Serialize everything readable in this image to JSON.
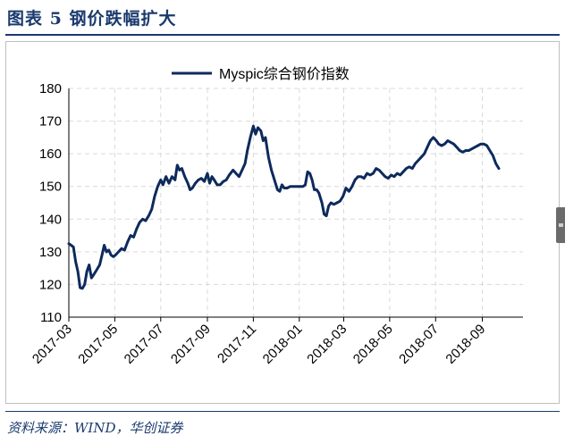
{
  "header": {
    "title": "图表 5 钢价跌幅扩大"
  },
  "footer": {
    "source": "资料来源：WIND，华创证券"
  },
  "colors": {
    "line": "#0d2a5c",
    "grid": "#d9d9d9",
    "title": "#1a3a6e"
  },
  "chart_data": {
    "type": "line",
    "title": "",
    "xlabel": "",
    "ylabel": "",
    "ylim": [
      110,
      180
    ],
    "yticks": [
      110,
      120,
      130,
      140,
      150,
      160,
      170,
      180
    ],
    "xlim": [
      "2017-03-01",
      "2018-10-25"
    ],
    "xticks": [
      "2017-03",
      "2017-05",
      "2017-07",
      "2017-09",
      "2017-11",
      "2018-01",
      "2018-03",
      "2018-05",
      "2018-07",
      "2018-09"
    ],
    "grid": true,
    "legend": "top-center",
    "series": [
      {
        "name": "Myspic综合钢价指数",
        "points": [
          [
            "2017-03-01",
            132.5
          ],
          [
            "2017-03-04",
            132
          ],
          [
            "2017-03-07",
            131.5
          ],
          [
            "2017-03-10",
            127
          ],
          [
            "2017-03-13",
            124
          ],
          [
            "2017-03-16",
            119
          ],
          [
            "2017-03-19",
            118.8
          ],
          [
            "2017-03-22",
            120
          ],
          [
            "2017-03-25",
            124
          ],
          [
            "2017-03-28",
            126
          ],
          [
            "2017-03-31",
            122
          ],
          [
            "2017-04-03",
            123
          ],
          [
            "2017-04-07",
            124.5
          ],
          [
            "2017-04-11",
            126
          ],
          [
            "2017-04-14",
            129
          ],
          [
            "2017-04-17",
            132
          ],
          [
            "2017-04-20",
            130
          ],
          [
            "2017-04-23",
            130.5
          ],
          [
            "2017-04-26",
            129
          ],
          [
            "2017-04-29",
            128.5
          ],
          [
            "2017-05-02",
            129
          ],
          [
            "2017-05-06",
            130
          ],
          [
            "2017-05-10",
            131
          ],
          [
            "2017-05-14",
            130.5
          ],
          [
            "2017-05-18",
            133
          ],
          [
            "2017-05-22",
            135
          ],
          [
            "2017-05-26",
            134.5
          ],
          [
            "2017-05-30",
            137
          ],
          [
            "2017-06-03",
            139
          ],
          [
            "2017-06-07",
            140
          ],
          [
            "2017-06-11",
            139.5
          ],
          [
            "2017-06-15",
            141
          ],
          [
            "2017-06-19",
            143
          ],
          [
            "2017-06-23",
            147
          ],
          [
            "2017-06-27",
            150
          ],
          [
            "2017-07-01",
            152
          ],
          [
            "2017-07-04",
            150.5
          ],
          [
            "2017-07-08",
            153
          ],
          [
            "2017-07-12",
            151
          ],
          [
            "2017-07-16",
            153
          ],
          [
            "2017-07-20",
            152
          ],
          [
            "2017-07-23",
            156.5
          ],
          [
            "2017-07-26",
            155
          ],
          [
            "2017-07-29",
            155.5
          ],
          [
            "2017-08-02",
            153
          ],
          [
            "2017-08-06",
            151
          ],
          [
            "2017-08-09",
            149
          ],
          [
            "2017-08-12",
            149.5
          ],
          [
            "2017-08-16",
            151
          ],
          [
            "2017-08-20",
            152
          ],
          [
            "2017-08-24",
            152.5
          ],
          [
            "2017-08-28",
            151.5
          ],
          [
            "2017-09-01",
            154
          ],
          [
            "2017-09-04",
            151
          ],
          [
            "2017-09-07",
            153
          ],
          [
            "2017-09-10",
            152
          ],
          [
            "2017-09-14",
            150.5
          ],
          [
            "2017-09-18",
            150.5
          ],
          [
            "2017-09-22",
            151.5
          ],
          [
            "2017-09-26",
            152
          ],
          [
            "2017-09-30",
            153.5
          ],
          [
            "2017-10-05",
            155
          ],
          [
            "2017-10-09",
            154
          ],
          [
            "2017-10-13",
            153
          ],
          [
            "2017-10-17",
            155
          ],
          [
            "2017-10-21",
            157
          ],
          [
            "2017-10-24",
            161
          ],
          [
            "2017-10-28",
            165
          ],
          [
            "2017-11-01",
            168.5
          ],
          [
            "2017-11-04",
            166
          ],
          [
            "2017-11-07",
            168
          ],
          [
            "2017-11-11",
            167
          ],
          [
            "2017-11-14",
            164
          ],
          [
            "2017-11-17",
            165
          ],
          [
            "2017-11-21",
            159
          ],
          [
            "2017-11-25",
            155
          ],
          [
            "2017-11-29",
            152
          ],
          [
            "2017-12-03",
            149
          ],
          [
            "2017-12-06",
            148.5
          ],
          [
            "2017-12-09",
            150.5
          ],
          [
            "2017-12-12",
            149.5
          ],
          [
            "2017-12-16",
            149.5
          ],
          [
            "2017-12-20",
            150
          ],
          [
            "2017-12-24",
            150
          ],
          [
            "2017-12-28",
            150
          ],
          [
            "2018-01-02",
            150
          ],
          [
            "2018-01-06",
            150
          ],
          [
            "2018-01-09",
            150.5
          ],
          [
            "2018-01-12",
            154.5
          ],
          [
            "2018-01-15",
            154
          ],
          [
            "2018-01-18",
            152
          ],
          [
            "2018-01-21",
            149
          ],
          [
            "2018-01-24",
            149
          ],
          [
            "2018-01-27",
            148
          ],
          [
            "2018-01-31",
            145
          ],
          [
            "2018-02-03",
            141.5
          ],
          [
            "2018-02-06",
            141
          ],
          [
            "2018-02-09",
            144
          ],
          [
            "2018-02-12",
            145
          ],
          [
            "2018-02-16",
            144.5
          ],
          [
            "2018-02-20",
            145
          ],
          [
            "2018-02-24",
            145.5
          ],
          [
            "2018-02-28",
            147
          ],
          [
            "2018-03-04",
            149.5
          ],
          [
            "2018-03-08",
            148.5
          ],
          [
            "2018-03-12",
            150
          ],
          [
            "2018-03-16",
            152
          ],
          [
            "2018-03-20",
            153
          ],
          [
            "2018-03-24",
            153
          ],
          [
            "2018-03-28",
            152.5
          ],
          [
            "2018-04-01",
            154
          ],
          [
            "2018-04-05",
            153.5
          ],
          [
            "2018-04-09",
            154
          ],
          [
            "2018-04-13",
            155.5
          ],
          [
            "2018-04-17",
            155
          ],
          [
            "2018-04-21",
            154
          ],
          [
            "2018-04-25",
            153
          ],
          [
            "2018-04-29",
            152.5
          ],
          [
            "2018-05-03",
            153.5
          ],
          [
            "2018-05-07",
            153
          ],
          [
            "2018-05-11",
            154
          ],
          [
            "2018-05-15",
            153.5
          ],
          [
            "2018-05-19",
            154.5
          ],
          [
            "2018-05-23",
            155.5
          ],
          [
            "2018-05-27",
            156
          ],
          [
            "2018-05-31",
            155.5
          ],
          [
            "2018-06-04",
            157
          ],
          [
            "2018-06-08",
            158
          ],
          [
            "2018-06-12",
            159
          ],
          [
            "2018-06-16",
            160
          ],
          [
            "2018-06-20",
            162
          ],
          [
            "2018-06-24",
            164
          ],
          [
            "2018-06-28",
            165
          ],
          [
            "2018-07-02",
            164
          ],
          [
            "2018-07-05",
            163
          ],
          [
            "2018-07-09",
            162.5
          ],
          [
            "2018-07-13",
            163
          ],
          [
            "2018-07-17",
            164
          ],
          [
            "2018-07-21",
            163.5
          ],
          [
            "2018-07-25",
            163
          ],
          [
            "2018-07-29",
            162
          ],
          [
            "2018-08-02",
            161
          ],
          [
            "2018-08-06",
            160.5
          ],
          [
            "2018-08-10",
            161
          ],
          [
            "2018-08-14",
            161
          ],
          [
            "2018-08-18",
            161.5
          ],
          [
            "2018-08-22",
            162
          ],
          [
            "2018-08-26",
            162.5
          ],
          [
            "2018-08-30",
            163
          ],
          [
            "2018-09-03",
            163
          ],
          [
            "2018-09-07",
            162.5
          ],
          [
            "2018-09-11",
            161
          ],
          [
            "2018-09-15",
            159.5
          ],
          [
            "2018-09-19",
            157
          ],
          [
            "2018-09-23",
            155.5
          ]
        ]
      }
    ]
  }
}
